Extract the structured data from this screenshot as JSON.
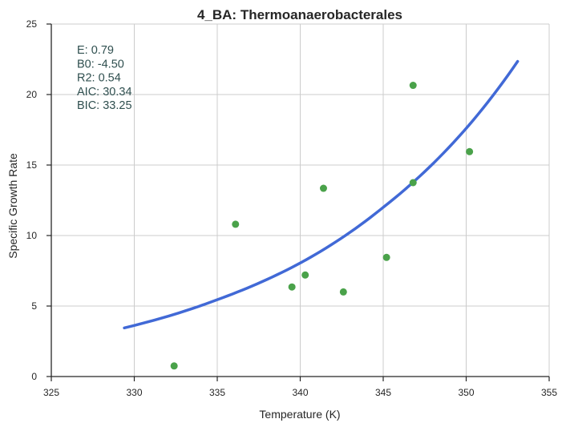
{
  "chart_data": {
    "type": "scatter",
    "title": "4_BA: Thermoanaerobacterales",
    "xlabel": "Temperature (K)",
    "ylabel": "Specific Growth Rate",
    "xlim": [
      325,
      355
    ],
    "ylim": [
      0,
      25
    ],
    "x_ticks": [
      325,
      330,
      335,
      340,
      345,
      350,
      355
    ],
    "y_ticks": [
      0,
      5,
      10,
      15,
      20,
      25
    ],
    "grid": true,
    "points": [
      {
        "x": 332.4,
        "y": 0.75
      },
      {
        "x": 336.1,
        "y": 10.8
      },
      {
        "x": 339.5,
        "y": 6.35
      },
      {
        "x": 340.3,
        "y": 7.2
      },
      {
        "x": 341.4,
        "y": 13.35
      },
      {
        "x": 342.6,
        "y": 6.0
      },
      {
        "x": 345.2,
        "y": 8.45
      },
      {
        "x": 346.8,
        "y": 20.65
      },
      {
        "x": 346.8,
        "y": 13.75
      },
      {
        "x": 350.2,
        "y": 15.95
      }
    ],
    "fit_curve": {
      "x_range": [
        329.4,
        353.1
      ],
      "samples": [
        {
          "x": 329.4,
          "y": 3.45
        },
        {
          "x": 335.0,
          "y": 5.45
        },
        {
          "x": 340.0,
          "y": 8.05
        },
        {
          "x": 345.0,
          "y": 12.0
        },
        {
          "x": 350.0,
          "y": 17.6
        },
        {
          "x": 353.1,
          "y": 22.35
        }
      ]
    },
    "stats": [
      {
        "label": "E:",
        "value": "0.79"
      },
      {
        "label": "B0:",
        "value": "-4.50"
      },
      {
        "label": "R2:",
        "value": "0.54"
      },
      {
        "label": "AIC:",
        "value": "30.34"
      },
      {
        "label": "BIC:",
        "value": "33.25"
      }
    ],
    "colors": {
      "points": "#4aa24a",
      "curve": "#4169d6",
      "grid": "#cccccc",
      "axis": "#262626",
      "stats_text": "#2f4f4f"
    }
  }
}
